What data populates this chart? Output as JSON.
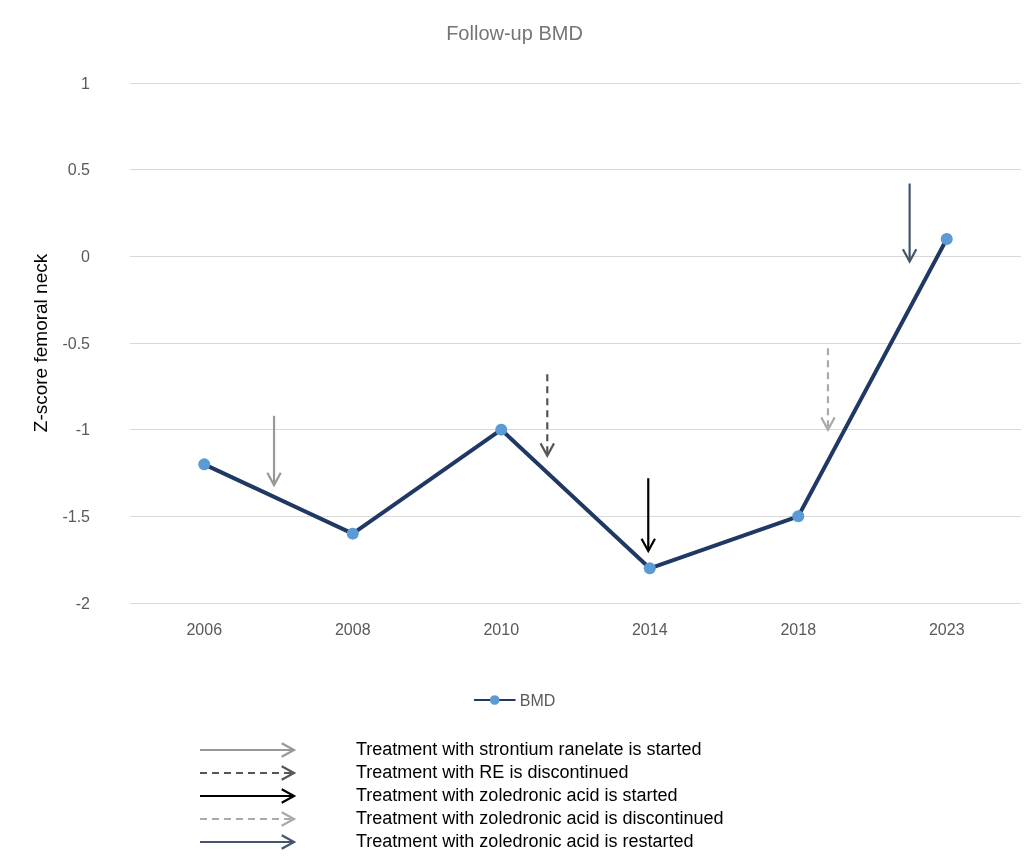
{
  "chart_data": {
    "type": "line",
    "title": "Follow-up BMD",
    "ylabel": "Z-score femoral neck",
    "categories": [
      "2006",
      "2008",
      "2010",
      "2014",
      "2018",
      "2023"
    ],
    "series": [
      {
        "name": "BMD",
        "color": "#1f3864",
        "values": [
          -1.2,
          -1.6,
          -1.0,
          -1.8,
          -1.5,
          0.1
        ]
      }
    ],
    "ylim": [
      -2,
      1
    ],
    "yticks": [
      -2,
      -1.5,
      -1,
      -0.5,
      0,
      0.5,
      1
    ],
    "grid": "y",
    "legend": "bottom",
    "marker": "circle",
    "line_style": "solid",
    "annotations": [
      "Treatment with strontium ranelate is started",
      "Treatment with RE is discontinued",
      "Treatment with zoledronic acid is started",
      "Treatment with zoledronic acid is discontinued",
      "Treatment with zoledronic acid is restarted"
    ]
  }
}
